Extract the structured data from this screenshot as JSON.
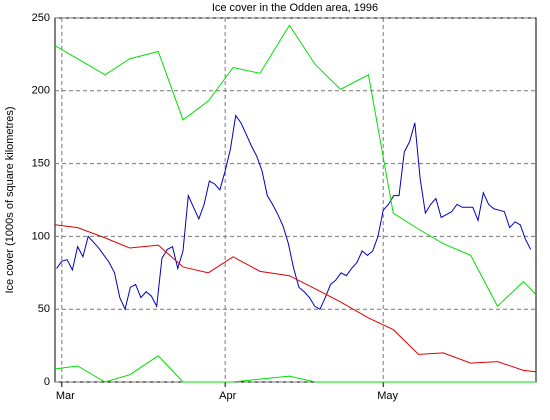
{
  "chart_data": {
    "type": "line",
    "title": "Ice cover in the Odden area, 1996",
    "y_label": "Ice cover (1000s of square kilometres)",
    "xlim": [
      59.7,
      151
    ],
    "ylim": [
      0,
      250
    ],
    "xticks": [
      {
        "value": 61,
        "label": "Mar"
      },
      {
        "value": 92,
        "label": "Apr"
      },
      {
        "value": 122,
        "label": "May"
      }
    ],
    "yticks": [
      0,
      50,
      100,
      150,
      200,
      250
    ],
    "grid": true,
    "series": [
      {
        "color": "#0000c0",
        "x": [
          60,
          61,
          62,
          63,
          64,
          65,
          66,
          67,
          68,
          69,
          70,
          71,
          72,
          73,
          74,
          75,
          76,
          77,
          78,
          79,
          80,
          81,
          82,
          83,
          84,
          85,
          86,
          87,
          88,
          89,
          90,
          91,
          92,
          93,
          94,
          95,
          96,
          97,
          98,
          99,
          100,
          101,
          102,
          103,
          104,
          105,
          106,
          107,
          108,
          109,
          110,
          111,
          112,
          113,
          114,
          115,
          116,
          117,
          118,
          119,
          120,
          121,
          122,
          123,
          124,
          125,
          126,
          127,
          128,
          129,
          130,
          131,
          132,
          133,
          134,
          135,
          136,
          137,
          138,
          139,
          140,
          141,
          142,
          143,
          144,
          145,
          146,
          147,
          148,
          149,
          150
        ],
        "values": [
          78,
          83,
          84,
          77,
          93,
          86,
          100,
          96,
          92,
          87,
          82,
          75,
          58,
          50,
          65,
          67,
          58,
          62,
          59,
          52,
          85,
          91,
          93,
          78,
          90,
          128,
          120,
          112,
          122,
          138,
          136,
          132,
          145,
          160,
          183,
          178,
          170,
          162,
          155,
          145,
          128,
          122,
          115,
          107,
          95,
          78,
          65,
          62,
          58,
          52,
          50,
          58,
          67,
          70,
          75,
          73,
          78,
          82,
          90,
          87,
          90,
          100,
          118,
          122,
          128,
          128,
          158,
          165,
          178,
          140,
          116,
          122,
          126,
          113,
          115,
          117,
          122,
          120,
          120,
          120,
          111,
          130,
          122,
          119,
          118,
          117,
          106,
          110,
          108,
          98,
          91
        ]
      },
      {
        "color": "#00e000",
        "x": [
          59.7,
          64,
          69.2,
          73.9,
          79.3,
          84,
          88.8,
          93.5,
          98.6,
          104.2,
          109.1,
          113.9,
          119.2,
          123.9,
          128.7,
          133.4,
          138.6,
          143.7,
          148.6,
          151
        ],
        "values": [
          231,
          222,
          211,
          222,
          227,
          180,
          193,
          216,
          212,
          245,
          218,
          201,
          211,
          116,
          105,
          95,
          87,
          52,
          69,
          60
        ]
      },
      {
        "color": "#00e000",
        "x": [
          59.7,
          64,
          69.2,
          73.9,
          79.3,
          84,
          88.8,
          93.5,
          98.6,
          104.2,
          109.1,
          113.9,
          119.2,
          123.9,
          128.7,
          133.4,
          138.6,
          143.7,
          148.6,
          151
        ],
        "values": [
          9,
          11,
          0,
          5,
          18,
          0,
          0,
          0,
          2,
          4,
          0,
          0,
          0,
          0,
          0,
          0,
          0,
          0,
          0,
          0
        ]
      },
      {
        "color": "#e00000",
        "x": [
          59.7,
          64,
          69.2,
          73.9,
          79.3,
          84,
          88.8,
          93.5,
          98.6,
          104.2,
          109.1,
          113.9,
          119.2,
          123.9,
          128.7,
          133.4,
          138.6,
          143.7,
          148.6,
          151
        ],
        "values": [
          108,
          106,
          99,
          92,
          94,
          79,
          75,
          86,
          76,
          73,
          64,
          55,
          44,
          36,
          19,
          20,
          13,
          14,
          8,
          7
        ]
      }
    ]
  }
}
